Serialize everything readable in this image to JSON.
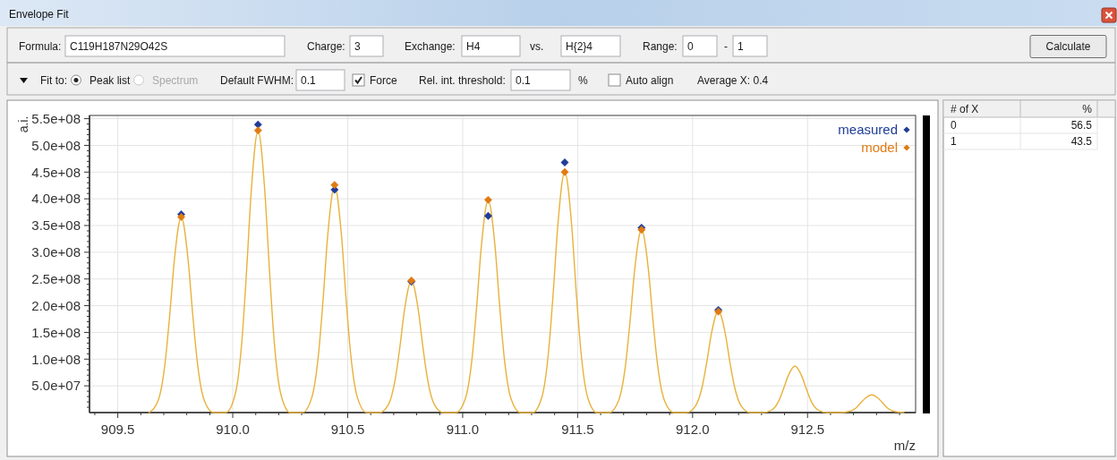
{
  "chart_data": [
    {
      "type": "other",
      "title": "Envelope Fit",
      "annotations": [
        "Formula:",
        "C119H187N29O42S",
        "Charge:",
        "3",
        "Exchange:",
        "H4",
        "vs.",
        "H{2}4",
        "Range:",
        "0",
        "-",
        "1",
        "Calculate",
        "Fit to:",
        "Peak list",
        "Spectrum",
        "Default FWHM:",
        "0.1",
        "Force",
        "Rel. int. threshold:",
        "0.1",
        "%",
        "Auto align",
        "Average X: 0.4"
      ]
    },
    {
      "type": "line",
      "xlabel": "m/z",
      "ylabel": "a.i.",
      "xlim": [
        909.377,
        912.97
      ],
      "ylim": [
        0,
        556000000.0
      ],
      "xticks": [
        {
          "value": 909.4,
          "label": null
        },
        909.5,
        {
          "value": 909.6,
          "label": null
        },
        {
          "value": 909.7,
          "label": null
        },
        {
          "value": 909.8,
          "label": null
        },
        {
          "value": 909.9,
          "label": null
        },
        {
          "value": 910,
          "label": "910.0"
        },
        {
          "value": 910.1,
          "label": null
        },
        {
          "value": 910.2,
          "label": null
        },
        {
          "value": 910.3,
          "label": null
        },
        {
          "value": 910.4,
          "label": null
        },
        910.5,
        {
          "value": 910.6,
          "label": null
        },
        {
          "value": 910.7,
          "label": null
        },
        {
          "value": 910.8,
          "label": null
        },
        {
          "value": 910.9,
          "label": null
        },
        {
          "value": 911,
          "label": "911.0"
        },
        {
          "value": 911.1,
          "label": null
        },
        {
          "value": 911.2,
          "label": null
        },
        {
          "value": 911.3,
          "label": null
        },
        {
          "value": 911.4,
          "label": null
        },
        911.5,
        {
          "value": 911.6,
          "label": null
        },
        {
          "value": 911.7,
          "label": null
        },
        {
          "value": 911.8,
          "label": null
        },
        {
          "value": 911.9,
          "label": null
        },
        {
          "value": 912,
          "label": "912.0"
        },
        {
          "value": 912.1,
          "label": null
        },
        {
          "value": 912.2,
          "label": null
        },
        {
          "value": 912.3,
          "label": null
        },
        {
          "value": 912.4,
          "label": null
        },
        912.5,
        {
          "value": 912.6,
          "label": null
        },
        {
          "value": 912.7,
          "label": null
        },
        {
          "value": 912.8,
          "label": null
        },
        {
          "value": 912.9,
          "label": null
        }
      ],
      "yticks": [
        {
          "value": 10000000.0,
          "label": null
        },
        {
          "value": 20000000.0,
          "label": null
        },
        {
          "value": 30000000.0,
          "label": null
        },
        {
          "value": 40000000.0,
          "label": null
        },
        {
          "value": 50000000.0,
          "label": "5.0e+07"
        },
        {
          "value": 60000000.0,
          "label": null
        },
        {
          "value": 70000000.0,
          "label": null
        },
        {
          "value": 80000000.0,
          "label": null
        },
        {
          "value": 90000000.0,
          "label": null
        },
        {
          "value": 100000000.0,
          "label": "1.0e+08"
        },
        {
          "value": 110000000.0,
          "label": null
        },
        {
          "value": 120000000.0,
          "label": null
        },
        {
          "value": 130000000.0,
          "label": null
        },
        {
          "value": 140000000.0,
          "label": null
        },
        {
          "value": 150000000.0,
          "label": "1.5e+08"
        },
        {
          "value": 160000000.0,
          "label": null
        },
        {
          "value": 170000000.0,
          "label": null
        },
        {
          "value": 180000000.0,
          "label": null
        },
        {
          "value": 190000000.0,
          "label": null
        },
        {
          "value": 200000000.0,
          "label": "2.0e+08"
        },
        {
          "value": 210000000.0,
          "label": null
        },
        {
          "value": 220000000.0,
          "label": null
        },
        {
          "value": 230000000.0,
          "label": null
        },
        {
          "value": 240000000.0,
          "label": null
        },
        {
          "value": 250000000.0,
          "label": "2.5e+08"
        },
        {
          "value": 260000000.0,
          "label": null
        },
        {
          "value": 270000000.0,
          "label": null
        },
        {
          "value": 280000000.0,
          "label": null
        },
        {
          "value": 290000000.0,
          "label": null
        },
        {
          "value": 300000000.0,
          "label": "3.0e+08"
        },
        {
          "value": 310000000.0,
          "label": null
        },
        {
          "value": 320000000.0,
          "label": null
        },
        {
          "value": 330000000.0,
          "label": null
        },
        {
          "value": 340000000.0,
          "label": null
        },
        {
          "value": 350000000.0,
          "label": "3.5e+08"
        },
        {
          "value": 360000000.0,
          "label": null
        },
        {
          "value": 370000000.0,
          "label": null
        },
        {
          "value": 380000000.0,
          "label": null
        },
        {
          "value": 390000000.0,
          "label": null
        },
        {
          "value": 400000000.0,
          "label": "4.0e+08"
        },
        {
          "value": 410000000.0,
          "label": null
        },
        {
          "value": 420000000.0,
          "label": null
        },
        {
          "value": 430000000.0,
          "label": null
        },
        {
          "value": 440000000.0,
          "label": null
        },
        {
          "value": 450000000.0,
          "label": "4.5e+08"
        },
        {
          "value": 460000000.0,
          "label": null
        },
        {
          "value": 470000000.0,
          "label": null
        },
        {
          "value": 480000000.0,
          "label": null
        },
        {
          "value": 490000000.0,
          "label": null
        },
        {
          "value": 500000000.0,
          "label": "5.0e+08"
        },
        {
          "value": 510000000.0,
          "label": null
        },
        {
          "value": 520000000.0,
          "label": null
        },
        {
          "value": 530000000.0,
          "label": null
        },
        {
          "value": 540000000.0,
          "label": null
        },
        {
          "value": 550000000.0,
          "label": "5.5e+08"
        }
      ],
      "grid": true,
      "legend": "top right",
      "series": [
        {
          "type": "line",
          "color": "#e8b23c",
          "marker": "none",
          "x": [
            909.636,
            909.676,
            909.706,
            909.726,
            909.746,
            909.776,
            909.806,
            909.826,
            909.846,
            909.876,
            909.916,
            909.97,
            910.01,
            910.04,
            910.06,
            910.08,
            910.11,
            910.14,
            910.16,
            910.18,
            910.21,
            910.25,
            910.303,
            910.343,
            910.373,
            910.393,
            910.413,
            910.443,
            910.473,
            910.493,
            910.513,
            910.543,
            910.583,
            910.637,
            910.677,
            910.707,
            910.727,
            910.747,
            910.777,
            910.807,
            910.827,
            910.847,
            910.877,
            910.917,
            910.971,
            911.011,
            911.041,
            911.061,
            911.081,
            911.111,
            911.141,
            911.161,
            911.181,
            911.211,
            911.251,
            911.304,
            911.344,
            911.374,
            911.394,
            911.414,
            911.444,
            911.474,
            911.494,
            911.514,
            911.544,
            911.584,
            911.638,
            911.678,
            911.708,
            911.728,
            911.748,
            911.778,
            911.808,
            911.828,
            911.848,
            911.878,
            911.918,
            911.972,
            912.012,
            912.042,
            912.062,
            912.082,
            912.112,
            912.142,
            912.162,
            912.182,
            912.212,
            912.252,
            912.305,
            912.345,
            912.375,
            912.395,
            912.415,
            912.445,
            912.475,
            912.495,
            912.515,
            912.545,
            912.585,
            912.639,
            912.679,
            912.709,
            912.729,
            912.749,
            912.779,
            912.809,
            912.829,
            912.849,
            912.879,
            912.919
          ],
          "values": [
            0,
            23000000.0,
            94000000.0,
            183000000.0,
            285000000.0,
            366000000.0,
            285000000.0,
            183000000.0,
            94000000.0,
            23000000.0,
            0,
            0,
            33000000.0,
            135000000.0,
            264000000.0,
            411000000.0,
            527000000.0,
            411000000.0,
            264000000.0,
            135000000.0,
            33000000.0,
            0,
            0,
            27000000.0,
            109000000.0,
            212000000.0,
            331000000.0,
            424000000.0,
            331000000.0,
            212000000.0,
            109000000.0,
            27000000.0,
            0,
            0,
            15000000.0,
            63000000.0,
            123000000.0,
            192000000.0,
            246000000.0,
            192000000.0,
            123000000.0,
            63000000.0,
            15000000.0,
            0,
            0,
            25000000.0,
            102000000.0,
            199000000.0,
            310000000.0,
            397000000.0,
            310000000.0,
            199000000.0,
            102000000.0,
            25000000.0,
            0,
            0,
            28000000.0,
            116000000.0,
            225000000.0,
            351000000.0,
            450000000.0,
            351000000.0,
            225000000.0,
            116000000.0,
            28000000.0,
            0,
            0,
            22000000.0,
            88000000.0,
            171000000.0,
            267000000.0,
            342000000.0,
            267000000.0,
            171000000.0,
            88000000.0,
            22000000.0,
            0,
            0,
            12000000.0,
            49000000.0,
            95000000.0,
            148000000.0,
            190000000.0,
            148000000.0,
            95000000.0,
            49000000.0,
            12000000.0,
            0,
            0,
            5000000.0,
            22000000.0,
            44000000.0,
            68000000.0,
            87000000.0,
            68000000.0,
            44000000.0,
            22000000.0,
            5000000.0,
            0,
            0,
            2000000.0,
            8000000.0,
            17000000.0,
            26000000.0,
            33000000.0,
            26000000.0,
            17000000.0,
            8000000.0,
            2000000.0,
            0
          ]
        },
        {
          "type": "scatter",
          "name": "measured",
          "color": "#1f3c98",
          "marker": "diamond",
          "x": [
            909.776,
            910.11,
            910.443,
            910.777,
            911.111,
            911.444,
            911.778,
            912.112
          ],
          "values": [
            371000000.0,
            539000000.0,
            417000000.0,
            245000000.0,
            368000000.0,
            468000000.0,
            346000000.0,
            192000000.0
          ]
        },
        {
          "type": "scatter",
          "name": "model",
          "color": "#e07b12",
          "marker": "diamond",
          "x": [
            909.776,
            910.11,
            910.443,
            910.777,
            911.111,
            911.444,
            911.778,
            912.112
          ],
          "values": [
            366000000.0,
            528000000.0,
            426000000.0,
            247000000.0,
            398000000.0,
            450000000.0,
            342000000.0,
            189000000.0
          ]
        }
      ]
    },
    {
      "type": "other",
      "annotations": [
        "# of X",
        "%",
        "0",
        "56.5",
        "1",
        "43.5"
      ]
    }
  ]
}
